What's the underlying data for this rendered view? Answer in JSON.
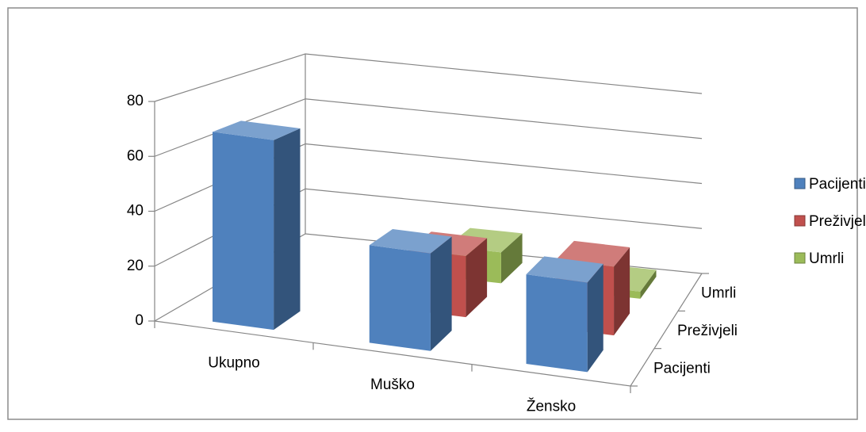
{
  "chart_data": {
    "type": "bar3d",
    "categories": [
      "Ukupno",
      "Muško",
      "Žensko"
    ],
    "series": [
      {
        "name": "Pacijenti",
        "color": "#4f81bd",
        "values": [
          70,
          36,
          33
        ]
      },
      {
        "name": "Preživjeli",
        "color": "#c0504d",
        "values": [
          null,
          24,
          27
        ]
      },
      {
        "name": "Umrli",
        "color": "#9bbb59",
        "values": [
          null,
          13,
          3
        ]
      }
    ],
    "ylim": [
      0,
      80
    ],
    "yticks": [
      0,
      20,
      40,
      60,
      80
    ],
    "grid": true,
    "legend": "right"
  }
}
